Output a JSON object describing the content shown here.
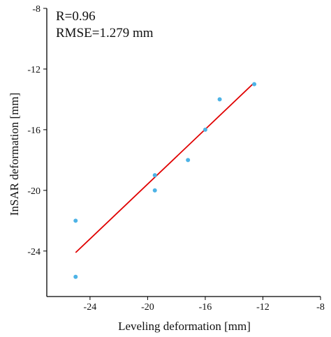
{
  "chart_data": {
    "type": "scatter",
    "title": "",
    "xlabel": "Leveling deformation [mm]",
    "ylabel": "InSAR deformation [mm]",
    "xlim": [
      -27,
      -8
    ],
    "ylim": [
      -27,
      -8
    ],
    "x_ticks": [
      -24,
      -20,
      -16,
      -12,
      -8
    ],
    "y_ticks": [
      -8,
      -12,
      -16,
      -20,
      -24
    ],
    "grid": false,
    "annotations": [
      "R=0.96",
      "RMSE=1.279 mm"
    ],
    "series": [
      {
        "type": "scatter",
        "color": "#4db3e6",
        "points": [
          {
            "x": -12.6,
            "y": -13.0
          },
          {
            "x": -15.0,
            "y": -14.0
          },
          {
            "x": -16.0,
            "y": -16.0
          },
          {
            "x": -17.2,
            "y": -18.0
          },
          {
            "x": -19.5,
            "y": -19.0
          },
          {
            "x": -19.5,
            "y": -20.0
          },
          {
            "x": -25.0,
            "y": -22.0
          },
          {
            "x": -25.0,
            "y": -25.7
          }
        ]
      },
      {
        "type": "line",
        "color": "#e00000",
        "points": [
          {
            "x": -25.0,
            "y": -24.1
          },
          {
            "x": -12.6,
            "y": -12.9
          }
        ]
      }
    ]
  }
}
